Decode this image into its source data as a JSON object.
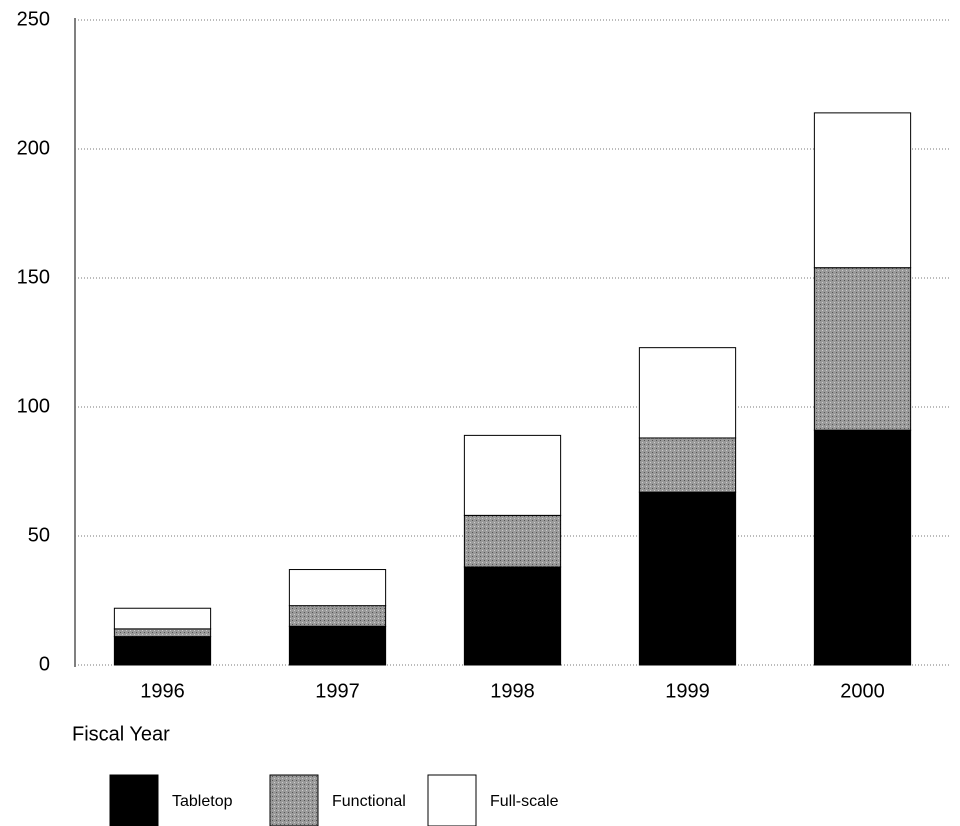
{
  "chart_data": {
    "type": "stacked-bar",
    "x_label": "Fiscal Year",
    "categories": [
      "1996",
      "1997",
      "1998",
      "1999",
      "2000"
    ],
    "series": [
      {
        "name": "Tabletop",
        "color": "#000000",
        "values": [
          11,
          15,
          38,
          67,
          91
        ]
      },
      {
        "name": "Functional",
        "color": "#9a9a9a",
        "values": [
          3,
          8,
          20,
          21,
          63
        ]
      },
      {
        "name": "Full-scale",
        "color": "#ffffff",
        "values": [
          8,
          14,
          31,
          35,
          60
        ]
      }
    ],
    "ylim": [
      0,
      250
    ],
    "yticks": [
      0,
      50,
      100,
      150,
      200,
      250
    ],
    "grid": true,
    "legend": "bottom"
  }
}
